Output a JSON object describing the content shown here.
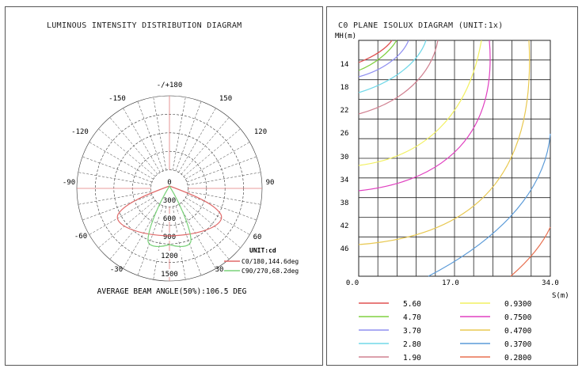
{
  "left_panel": {
    "title": "LUMINOUS INTENSITY DISTRIBUTION DIAGRAM",
    "angle_labels": {
      "top": "-/+180",
      "tl": "-150",
      "tr": "150",
      "ul": "-120",
      "ur": "120",
      "ml": "-90",
      "mr": "90",
      "ll": "-60",
      "lr": "60",
      "bl": "-30",
      "br": "30",
      "bottom": "0"
    },
    "radial_labels": [
      "300",
      "600",
      "900",
      "1200",
      "1500"
    ],
    "unit": "UNIT:cd",
    "legend": [
      {
        "label": "C0/180,144.6deg",
        "color": "#e06a6a"
      },
      {
        "label": "C90/270,68.2deg",
        "color": "#7ad27a"
      }
    ],
    "beam_angle": "AVERAGE BEAM ANGLE(50%):106.5 DEG"
  },
  "right_panel": {
    "title": "C0 PLANE ISOLUX DIAGRAM (UNIT:1x)",
    "y_axis_label": "MH(m)",
    "x_axis_label": "S(m)",
    "y_ticks": [
      "14",
      "18",
      "22",
      "26",
      "30",
      "34",
      "38",
      "42",
      "46"
    ],
    "x_ticks": [
      "0.0",
      "17.0",
      "34.0"
    ],
    "legend": [
      {
        "value": "5.60",
        "color": "#e05050"
      },
      {
        "value": "0.9300",
        "color": "#f2f060"
      },
      {
        "value": "4.70",
        "color": "#80d040"
      },
      {
        "value": "0.7500",
        "color": "#e040c0"
      },
      {
        "value": "3.70",
        "color": "#8f8ff0"
      },
      {
        "value": "0.4700",
        "color": "#e8c850"
      },
      {
        "value": "2.80",
        "color": "#70d8e8"
      },
      {
        "value": "0.3700",
        "color": "#5a9ad8"
      },
      {
        "value": "1.90",
        "color": "#d08090"
      },
      {
        "value": "0.2800",
        "color": "#e87050"
      }
    ]
  }
}
